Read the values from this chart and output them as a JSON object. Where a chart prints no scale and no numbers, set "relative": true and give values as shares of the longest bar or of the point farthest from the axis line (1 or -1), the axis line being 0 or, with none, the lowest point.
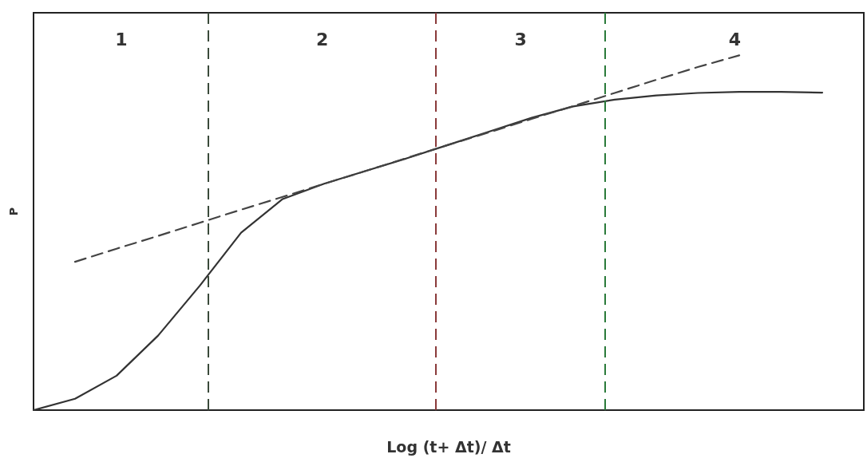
{
  "chart_data": {
    "type": "line",
    "relative": true,
    "xlabel": "Log (t+ Δt)/ Δt",
    "ylabel": "P",
    "categories": [
      null,
      null,
      null,
      null,
      null,
      null,
      null,
      null,
      null,
      null,
      null,
      null,
      null,
      null,
      null,
      null,
      null,
      null,
      null,
      null,
      null
    ],
    "tick_labels": false,
    "grid": false,
    "marker": "none",
    "series": [
      {
        "values": [
          0,
          0.032,
          0.097,
          0.21,
          0.35,
          0.5,
          0.595,
          0.638,
          0.674,
          0.71,
          0.748,
          0.786,
          0.824,
          0.856,
          0.875,
          0.887,
          0.894,
          0.897,
          0.897,
          0.895,
          null
        ],
        "color": "#333333",
        "line_style": "solid"
      },
      {
        "values": [
          null,
          0.418,
          0.455,
          0.491,
          0.528,
          0.565,
          0.601,
          0.638,
          0.674,
          0.711,
          0.748,
          0.784,
          0.821,
          0.857,
          0.894,
          0.931,
          0.967,
          1.0,
          null,
          null,
          null
        ],
        "color": "#444444",
        "line_style": "dashed"
      }
    ],
    "annotations": [
      "1",
      "2",
      "3",
      "4"
    ]
  }
}
